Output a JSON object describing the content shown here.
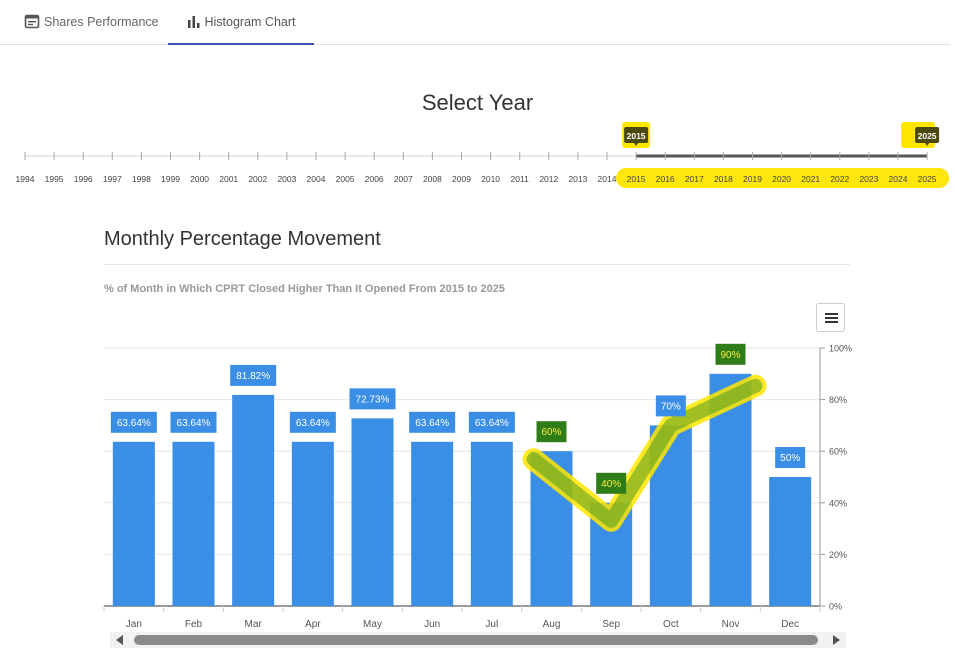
{
  "tabs": [
    {
      "label": "Shares Performance",
      "icon": "calendar-icon"
    },
    {
      "label": "Histogram Chart",
      "icon": "bar-chart-icon"
    }
  ],
  "year_selector": {
    "title": "Select Year",
    "years": [
      "1994",
      "1995",
      "1996",
      "1997",
      "1998",
      "1999",
      "2000",
      "2001",
      "2002",
      "2003",
      "2004",
      "2005",
      "2006",
      "2007",
      "2008",
      "2009",
      "2010",
      "2011",
      "2012",
      "2013",
      "2014",
      "2015",
      "2016",
      "2017",
      "2018",
      "2019",
      "2020",
      "2021",
      "2022",
      "2023",
      "2024",
      "2025"
    ],
    "range_start": "2015",
    "range_end": "2025"
  },
  "chart_data": {
    "type": "bar",
    "title": "Monthly Percentage Movement",
    "subtitle": "% of Month in Which CPRT Closed Higher Than It Opened From 2015 to 2025",
    "categories": [
      "Jan",
      "Feb",
      "Mar",
      "Apr",
      "May",
      "Jun",
      "Jul",
      "Aug",
      "Sep",
      "Oct",
      "Nov",
      "Dec"
    ],
    "values": [
      63.64,
      63.64,
      81.82,
      63.64,
      72.73,
      63.64,
      63.64,
      60,
      40,
      70,
      90,
      50
    ],
    "data_labels": [
      "63.64%",
      "63.64%",
      "81.82%",
      "63.64%",
      "72.73%",
      "63.64%",
      "63.64%",
      "60%",
      "40%",
      "70%",
      "90%",
      "50%"
    ],
    "y_ticks": [
      "0%",
      "20%",
      "40%",
      "60%",
      "80%",
      "100%"
    ],
    "ylim": [
      0,
      100
    ],
    "y_axis_position": "right",
    "grid": true,
    "bar_color": "#3a8ee6"
  },
  "colors": {
    "bar": "#3a8ee6",
    "label_bg": "#3a8ee6",
    "highlight": "#ffe600",
    "accent": "#3f51b5"
  }
}
